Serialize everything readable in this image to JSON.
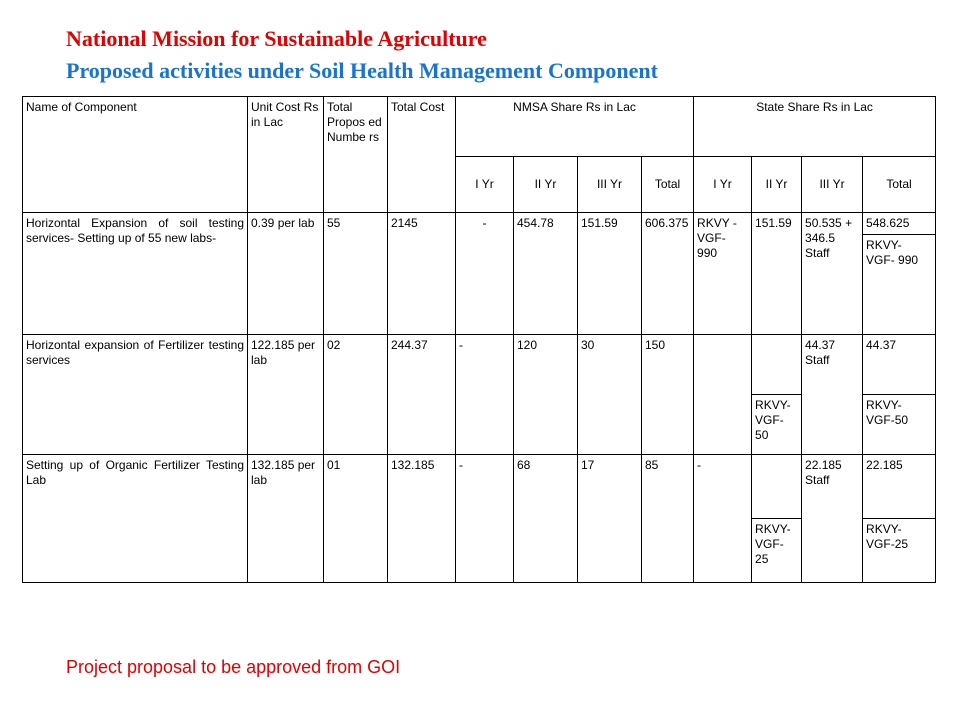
{
  "title_line1": "National Mission for Sustainable Agriculture",
  "title_line2": "Proposed activities under Soil Health Management Component",
  "header": {
    "name": "Name of Component",
    "unit_cost": "Unit Cost Rs in Lac",
    "total_proposed": "Total Propos ed Numbe rs",
    "total_cost": "Total Cost",
    "nmsa": "NMSA Share Rs in Lac",
    "state": "State Share Rs in Lac",
    "nmsa_sub": [
      "I Yr",
      "II Yr",
      "III Yr",
      "Total"
    ],
    "state_sub": [
      "I Yr",
      "II Yr",
      "III Yr",
      "Total"
    ]
  },
  "rows": [
    {
      "name": "Horizontal Expansion of soil testing services- Setting up of 55 new labs-",
      "unit_cost": "0.39 per lab",
      "numbers": "55",
      "cost": "2145",
      "n1": "-",
      "n2": "454.78",
      "n3": "151.59",
      "nt": "606.375",
      "s1": "RKVY - VGF- 990",
      "s2": "151.59",
      "s3": "50.535 + 346.5 Staff",
      "st": "548.625",
      "st_extra": "RKVY- VGF- 990"
    },
    {
      "name": "Horizontal expansion of Fertilizer testing services",
      "unit_cost": "122.185 per lab",
      "numbers": "02",
      "cost": "244.37",
      "n1": "-",
      "n2": "120",
      "n3": "30",
      "nt": "150",
      "s1": "",
      "s2": "",
      "s3": "44.37 Staff",
      "st": "44.37",
      "s2_extra": "RKVY- VGF- 50",
      "st_extra": "RKVY- VGF-50"
    },
    {
      "name": "Setting up of Organic Fertilizer Testing Lab",
      "unit_cost": "132.185 per lab",
      "numbers": "01",
      "cost": "132.185",
      "n1": "-",
      "n2": "68",
      "n3": "17",
      "nt": "85",
      "s1": "-",
      "s2": "",
      "s3": "22.185 Staff",
      "st": "22.185",
      "s2_extra": "RKVY- VGF- 25",
      "st_extra": "RKVY- VGF-25"
    }
  ],
  "footer": "Project proposal to be approved from GOI"
}
